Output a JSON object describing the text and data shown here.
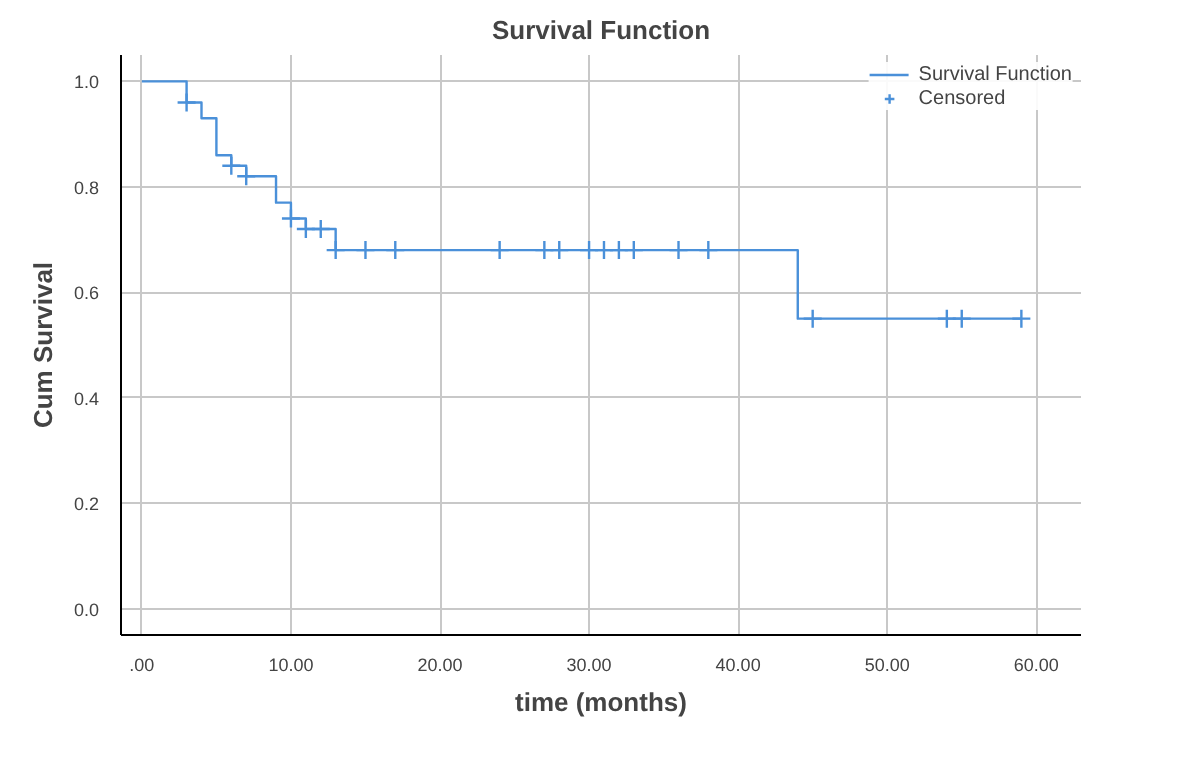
{
  "chart_data": {
    "type": "step",
    "title": "Survival Function",
    "xlabel": "time (months)",
    "ylabel": "Cum Survival",
    "series": [
      {
        "name": "Survival Function",
        "color": "#4a90d9",
        "x": [
          0,
          3,
          4,
          5,
          6,
          7,
          9,
          10,
          11,
          13,
          44,
          59
        ],
        "values": [
          1.0,
          0.96,
          0.93,
          0.86,
          0.84,
          0.82,
          0.77,
          0.74,
          0.72,
          0.68,
          0.55,
          0.55
        ]
      },
      {
        "name": "Censored",
        "type": "scatter",
        "marker": "cross",
        "color": "#4a90d9",
        "x": [
          3,
          6,
          7,
          10,
          11,
          12,
          13,
          15,
          17,
          24,
          27,
          28,
          30,
          31,
          32,
          33,
          36,
          38,
          45,
          54,
          55,
          59
        ],
        "values": [
          0.96,
          0.84,
          0.82,
          0.74,
          0.72,
          0.72,
          0.68,
          0.68,
          0.68,
          0.68,
          0.68,
          0.68,
          0.68,
          0.68,
          0.68,
          0.68,
          0.68,
          0.68,
          0.55,
          0.55,
          0.55,
          0.55
        ]
      }
    ],
    "xlim": [
      -1.4,
      63
    ],
    "ylim": [
      -0.05,
      1.05
    ],
    "xticks": [
      {
        "value": 0,
        "label": ".00"
      },
      {
        "value": 10,
        "label": "10.00"
      },
      {
        "value": 20,
        "label": "20.00"
      },
      {
        "value": 30,
        "label": "30.00"
      },
      {
        "value": 40,
        "label": "40.00"
      },
      {
        "value": 50,
        "label": "50.00"
      },
      {
        "value": 60,
        "label": "60.00"
      }
    ],
    "yticks": [
      {
        "value": 0,
        "label": "0.0"
      },
      {
        "value": 0.2,
        "label": "0.2"
      },
      {
        "value": 0.4,
        "label": "0.4"
      },
      {
        "value": 0.6,
        "label": "0.6"
      },
      {
        "value": 0.8,
        "label": "0.8"
      },
      {
        "value": 1,
        "label": "1.0"
      }
    ],
    "grid": true,
    "legend": "top right"
  }
}
